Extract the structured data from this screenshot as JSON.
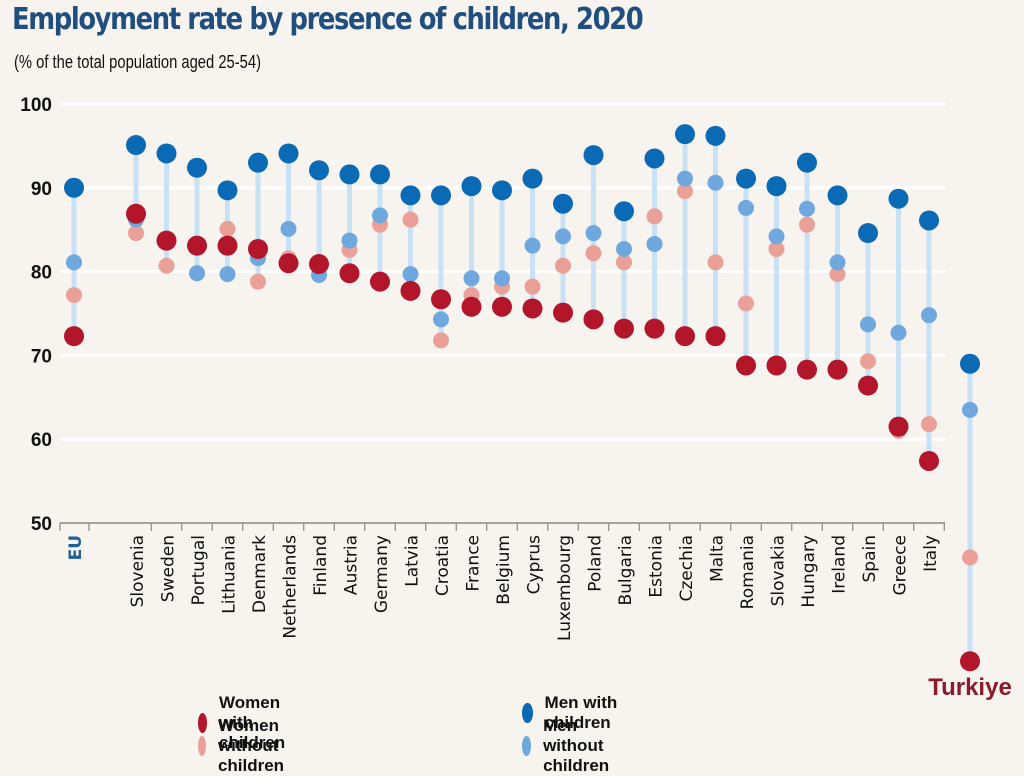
{
  "chart_data": {
    "type": "scatter",
    "subtype": "dot-plot",
    "title": "Employment rate by presence of children, 2020",
    "subtitle": "(% of the total population aged 25-54)",
    "xlabel": "",
    "ylabel": "",
    "ylim": [
      50,
      100
    ],
    "yticks": [
      50,
      60,
      70,
      80,
      90,
      100
    ],
    "grid": true,
    "legend_position": "bottom",
    "categories": [
      "EU",
      "Slovenia",
      "Sweden",
      "Portugal",
      "Lithuania",
      "Denmark",
      "Netherlands",
      "Finland",
      "Austria",
      "Germany",
      "Latvia",
      "Croatia",
      "France",
      "Belgium",
      "Cyprus",
      "Luxembourg",
      "Poland",
      "Bulgaria",
      "Estonia",
      "Czechia",
      "Malta",
      "Romania",
      "Slovakia",
      "Hungary",
      "Ireland",
      "Spain",
      "Greece",
      "Italy",
      "Turkiye"
    ],
    "highlight_labels": {
      "EU": "#1f5f9a",
      "Turkiye": "#8b1a2a"
    },
    "series": [
      {
        "name": "Men with children",
        "color": "#0b6ab5",
        "values": [
          90.0,
          95.1,
          94.1,
          92.4,
          89.7,
          93.0,
          94.1,
          92.1,
          91.6,
          91.6,
          89.1,
          89.1,
          90.2,
          89.7,
          91.1,
          88.1,
          93.9,
          87.2,
          93.5,
          96.4,
          96.2,
          91.1,
          90.2,
          93.0,
          89.1,
          84.6,
          88.7,
          86.1,
          69.0
        ]
      },
      {
        "name": "Men without children",
        "color": "#6fa8de",
        "values": [
          81.1,
          86.2,
          83.5,
          79.8,
          79.7,
          81.6,
          85.1,
          79.6,
          83.7,
          86.7,
          79.7,
          74.3,
          79.2,
          79.2,
          83.1,
          84.2,
          84.6,
          82.7,
          83.3,
          91.1,
          90.6,
          87.6,
          84.2,
          87.5,
          81.1,
          73.7,
          72.7,
          74.8,
          63.5
        ]
      },
      {
        "name": "Women without children",
        "color": "#eba097",
        "values": [
          77.2,
          84.6,
          80.7,
          79.8,
          85.1,
          78.8,
          81.6,
          80.7,
          82.6,
          85.6,
          86.2,
          71.8,
          77.2,
          78.2,
          78.2,
          80.7,
          82.2,
          81.1,
          86.6,
          89.6,
          81.1,
          76.2,
          82.7,
          85.6,
          79.7,
          69.3,
          61.0,
          61.8,
          45.9
        ]
      },
      {
        "name": "Women with children",
        "color": "#b3152a",
        "values": [
          72.3,
          86.9,
          83.7,
          83.1,
          83.1,
          82.7,
          81.0,
          80.9,
          79.8,
          78.8,
          77.7,
          76.7,
          75.8,
          75.8,
          75.6,
          75.1,
          74.3,
          73.2,
          73.2,
          72.3,
          72.3,
          68.8,
          68.8,
          68.3,
          68.3,
          66.4,
          61.5,
          57.4,
          33.5
        ]
      }
    ],
    "legend": [
      {
        "label": "Women with children",
        "color": "#b3152a"
      },
      {
        "label": "Women without children",
        "color": "#eba097"
      },
      {
        "label": "Men with children",
        "color": "#0b6ab5"
      },
      {
        "label": "Men without children",
        "color": "#6fa8de"
      }
    ]
  }
}
